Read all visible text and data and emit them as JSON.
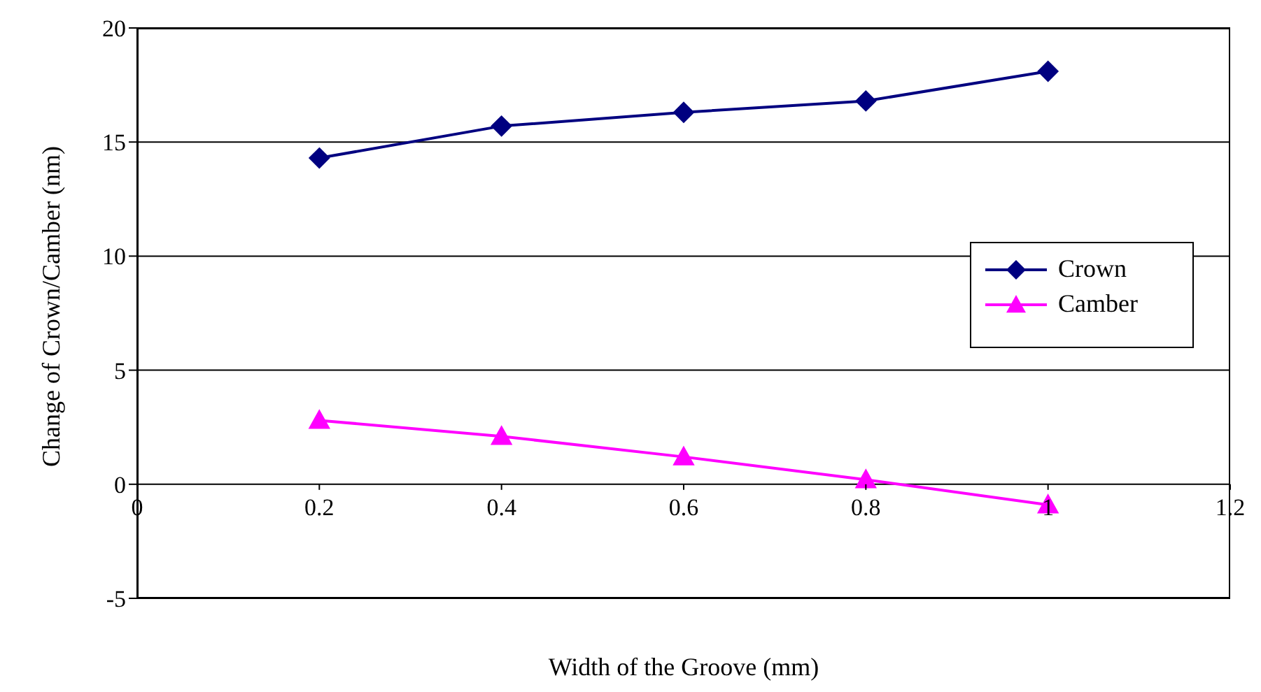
{
  "chart_data": {
    "type": "line",
    "xlabel": "Width of the Groove (mm)",
    "ylabel": "Change of Crown/Camber (nm)",
    "x": [
      0.2,
      0.4,
      0.6,
      0.8,
      1
    ],
    "series": [
      {
        "name": "Crown",
        "color": "#000080",
        "marker": "diamond",
        "values": [
          14.3,
          15.7,
          16.3,
          16.8,
          18.1
        ]
      },
      {
        "name": "Camber",
        "color": "#ff00ff",
        "marker": "triangle",
        "values": [
          2.8,
          2.1,
          1.2,
          0.2,
          -0.9
        ]
      }
    ],
    "xlim": [
      0,
      1.2
    ],
    "xticks": [
      0,
      0.2,
      0.4,
      0.6,
      0.8,
      1,
      1.2
    ],
    "ylim": [
      -5,
      20
    ],
    "yticks": [
      -5,
      0,
      5,
      10,
      15,
      20
    ],
    "grid": "y",
    "legend": "right"
  }
}
